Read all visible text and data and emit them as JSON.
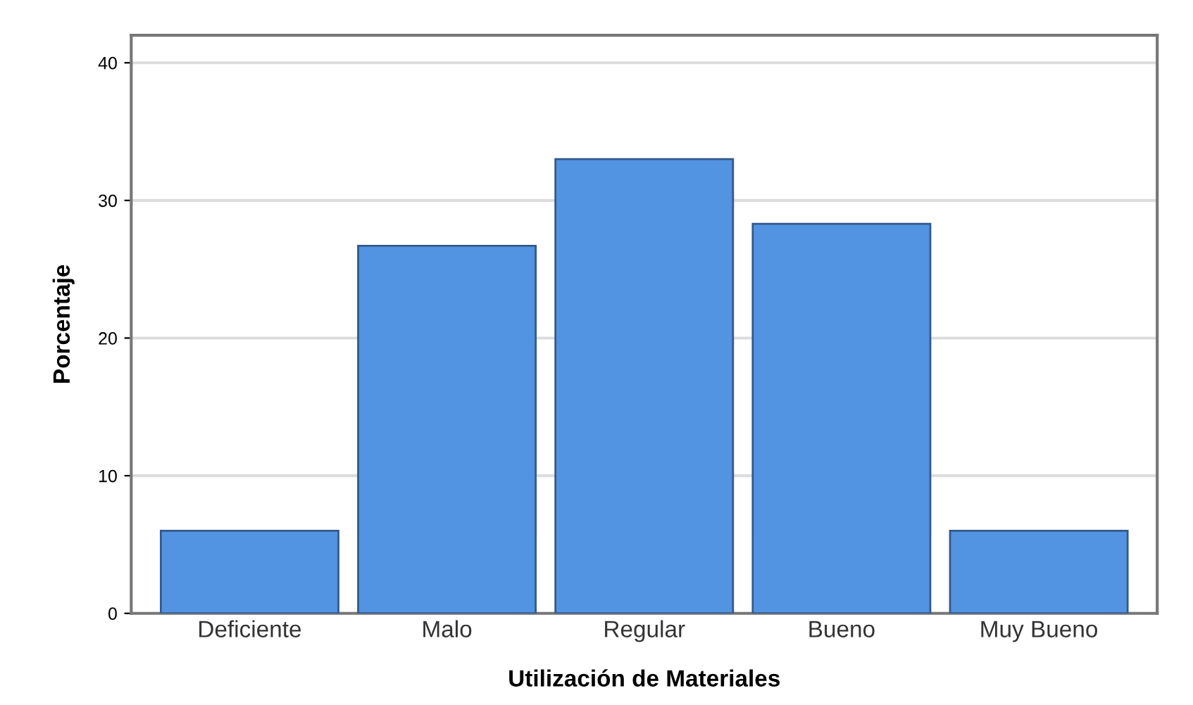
{
  "chart_data": {
    "type": "bar",
    "xlabel": "Utilización de Materiales",
    "ylabel": "Porcentaje",
    "categories": [
      "Deficiente",
      "Malo",
      "Regular",
      "Bueno",
      "Muy Bueno"
    ],
    "values": [
      6.0,
      26.7,
      33.0,
      28.3,
      6.0
    ],
    "color": "#5294e2",
    "ylim": [
      0,
      42
    ],
    "yticks": [
      0,
      10,
      20,
      30,
      40
    ],
    "grid": "y"
  }
}
